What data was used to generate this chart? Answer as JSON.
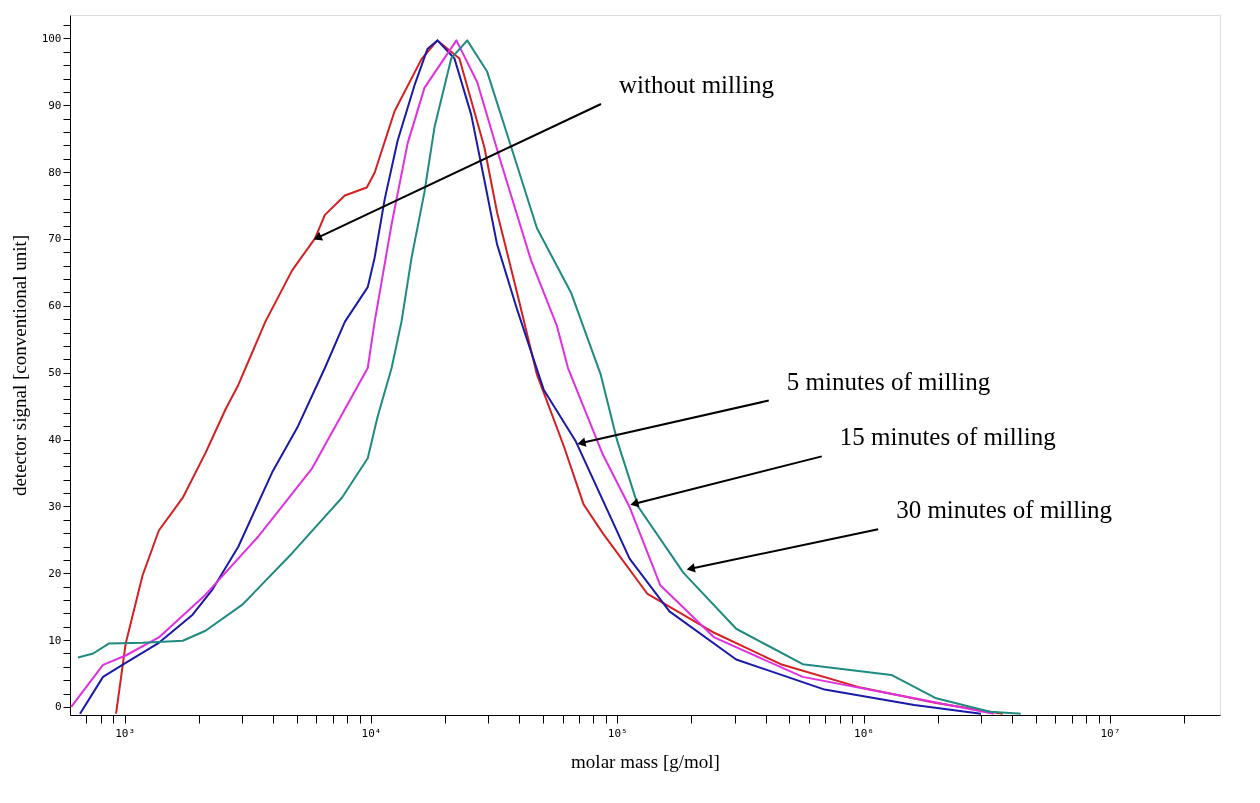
{
  "chart_data": {
    "type": "line",
    "xlabel": "molar mass [g/mol]",
    "ylabel": "detector signal [conventional unit]",
    "log": "x",
    "grid": false,
    "xlim": [
      600,
      28000000
    ],
    "ylim": [
      -1.2,
      103.5
    ],
    "xticks": [
      {
        "value": 700,
        "label": null
      },
      {
        "value": 800,
        "label": null
      },
      {
        "value": 900,
        "label": null
      },
      {
        "value": 1000,
        "label": "10³"
      },
      {
        "value": 2000,
        "label": null
      },
      {
        "value": 3000,
        "label": null
      },
      {
        "value": 4000,
        "label": null
      },
      {
        "value": 5000,
        "label": null
      },
      {
        "value": 6000,
        "label": null
      },
      {
        "value": 7000,
        "label": null
      },
      {
        "value": 8000,
        "label": null
      },
      {
        "value": 9000,
        "label": null
      },
      {
        "value": 10000,
        "label": "10⁴"
      },
      {
        "value": 20000,
        "label": null
      },
      {
        "value": 30000,
        "label": null
      },
      {
        "value": 40000,
        "label": null
      },
      {
        "value": 50000,
        "label": null
      },
      {
        "value": 60000,
        "label": null
      },
      {
        "value": 70000,
        "label": null
      },
      {
        "value": 80000,
        "label": null
      },
      {
        "value": 90000,
        "label": null
      },
      {
        "value": 100000,
        "label": "10⁵"
      },
      {
        "value": 200000,
        "label": null
      },
      {
        "value": 300000,
        "label": null
      },
      {
        "value": 400000,
        "label": null
      },
      {
        "value": 500000,
        "label": null
      },
      {
        "value": 600000,
        "label": null
      },
      {
        "value": 700000,
        "label": null
      },
      {
        "value": 800000,
        "label": null
      },
      {
        "value": 900000,
        "label": null
      },
      {
        "value": 1000000,
        "label": "10⁶"
      },
      {
        "value": 2000000,
        "label": null
      },
      {
        "value": 3000000,
        "label": null
      },
      {
        "value": 4000000,
        "label": null
      },
      {
        "value": 5000000,
        "label": null
      },
      {
        "value": 6000000,
        "label": null
      },
      {
        "value": 7000000,
        "label": null
      },
      {
        "value": 8000000,
        "label": null
      },
      {
        "value": 9000000,
        "label": null
      },
      {
        "value": 10000000,
        "label": "10⁷"
      },
      {
        "value": 20000000,
        "label": null
      }
    ],
    "yticks": [
      0,
      {
        "value": 2,
        "label": null
      },
      {
        "value": 4,
        "label": null
      },
      {
        "value": 6,
        "label": null
      },
      {
        "value": 8,
        "label": null
      },
      10,
      {
        "value": 12,
        "label": null
      },
      {
        "value": 14,
        "label": null
      },
      {
        "value": 16,
        "label": null
      },
      {
        "value": 18,
        "label": null
      },
      20,
      {
        "value": 22,
        "label": null
      },
      {
        "value": 24,
        "label": null
      },
      {
        "value": 26,
        "label": null
      },
      {
        "value": 28,
        "label": null
      },
      30,
      {
        "value": 32,
        "label": null
      },
      {
        "value": 34,
        "label": null
      },
      {
        "value": 36,
        "label": null
      },
      {
        "value": 38,
        "label": null
      },
      40,
      {
        "value": 42,
        "label": null
      },
      {
        "value": 44,
        "label": null
      },
      {
        "value": 46,
        "label": null
      },
      {
        "value": 48,
        "label": null
      },
      50,
      {
        "value": 52,
        "label": null
      },
      {
        "value": 54,
        "label": null
      },
      {
        "value": 56,
        "label": null
      },
      {
        "value": 58,
        "label": null
      },
      60,
      {
        "value": 62,
        "label": null
      },
      {
        "value": 64,
        "label": null
      },
      {
        "value": 66,
        "label": null
      },
      {
        "value": 68,
        "label": null
      },
      70,
      {
        "value": 72,
        "label": null
      },
      {
        "value": 74,
        "label": null
      },
      {
        "value": 76,
        "label": null
      },
      {
        "value": 78,
        "label": null
      },
      80,
      {
        "value": 82,
        "label": null
      },
      {
        "value": 84,
        "label": null
      },
      {
        "value": 86,
        "label": null
      },
      {
        "value": 88,
        "label": null
      },
      90,
      {
        "value": 92,
        "label": null
      },
      {
        "value": 94,
        "label": null
      },
      {
        "value": 96,
        "label": null
      },
      {
        "value": 98,
        "label": null
      },
      100,
      {
        "value": 102,
        "label": null
      }
    ],
    "series": [
      {
        "color": "#d42020",
        "x": [
          923,
          1010,
          1183,
          1377,
          1722,
          2130,
          2566,
          2897,
          3724,
          4786,
          5929,
          6501,
          7834,
          9616,
          10350,
          12470,
          16040,
          18620,
          22860,
          28840,
          32510,
          39170,
          47210,
          60700,
          73000,
          87300,
          132700,
          247600,
          461300,
          972000,
          1972000,
          3673000
        ],
        "values": [
          -1.0,
          9.5,
          19.7,
          26.4,
          31.3,
          38,
          44.5,
          48.2,
          57.6,
          65.3,
          70.1,
          73.6,
          76.5,
          77.7,
          79.9,
          89.1,
          96.9,
          99.7,
          97,
          83.8,
          74,
          62,
          49.7,
          39,
          30.3,
          26,
          16.9,
          11.1,
          6.4,
          2.9,
          0.6,
          -1.0
        ]
      },
      {
        "color": "#1a1aa8",
        "x": [
          659,
          817,
          1010,
          1377,
          1888,
          2275,
          2897,
          3972,
          5058,
          6501,
          7834,
          9705,
          10350,
          11380,
          12830,
          15030,
          16950,
          18620,
          21830,
          25530,
          28840,
          32510,
          39170,
          50350,
          67920,
          112200,
          162900,
          304000,
          695000,
          1607000,
          2999000
        ],
        "values": [
          -1.0,
          4.5,
          6.6,
          9.6,
          13.8,
          17.6,
          24,
          35.1,
          42,
          50.7,
          57.6,
          62.8,
          67.2,
          76,
          84.7,
          93,
          98.4,
          99.7,
          97,
          88.6,
          78.9,
          69.2,
          59.5,
          47.4,
          39.7,
          22.2,
          14.3,
          7.1,
          2.6,
          0.3,
          -1.0
        ]
      },
      {
        "color": "#e030e0",
        "x": [
          607,
          817,
          1010,
          1377,
          2130,
          3491,
          5768,
          9705,
          10350,
          12130,
          14090,
          16490,
          22230,
          27040,
          33810,
          44670,
          56890,
          63100,
          87300,
          112200,
          149600,
          247600,
          566200,
          1607000,
          3381000
        ],
        "values": [
          0,
          6.3,
          7.7,
          10.4,
          16.8,
          25.5,
          35.7,
          50.7,
          57.6,
          72.2,
          84.3,
          92.6,
          99.7,
          93.4,
          81.3,
          66.8,
          57,
          50.7,
          37.8,
          29.9,
          18.2,
          10.4,
          4.5,
          1.3,
          -1.0
        ]
      },
      {
        "color": "#1f8a80",
        "x": [
          647,
          745,
          865,
          1186,
          1722,
          2130,
          3006,
          4786,
          7621,
          9705,
          10640,
          12130,
          13300,
          14620,
          16490,
          18110,
          21180,
          24600,
          29650,
          37070,
          47210,
          64860,
          85700,
          100000,
          121900,
          185400,
          304000,
          566200,
          1297000,
          1972000,
          3258000,
          4345000
        ],
        "values": [
          7.4,
          8.0,
          9.5,
          9.6,
          9.9,
          11.4,
          15.3,
          23,
          31.3,
          37.2,
          43.4,
          50.7,
          57.6,
          67.2,
          77,
          86.7,
          97,
          99.7,
          95,
          83.8,
          71.6,
          62,
          49.7,
          39.8,
          29.9,
          20.1,
          11.7,
          6.4,
          4.8,
          1.3,
          -0.7,
          -1.0
        ]
      }
    ],
    "annotations": [
      {
        "text": "without milling",
        "x": 5929,
        "y": 70
      },
      {
        "text": "5 minutes of milling",
        "x": 69800,
        "y": 39.4
      },
      {
        "text": "15 minutes of milling",
        "x": 114500,
        "y": 30.3
      },
      {
        "text": "30 minutes of milling",
        "x": 194000,
        "y": 20.6
      }
    ]
  }
}
